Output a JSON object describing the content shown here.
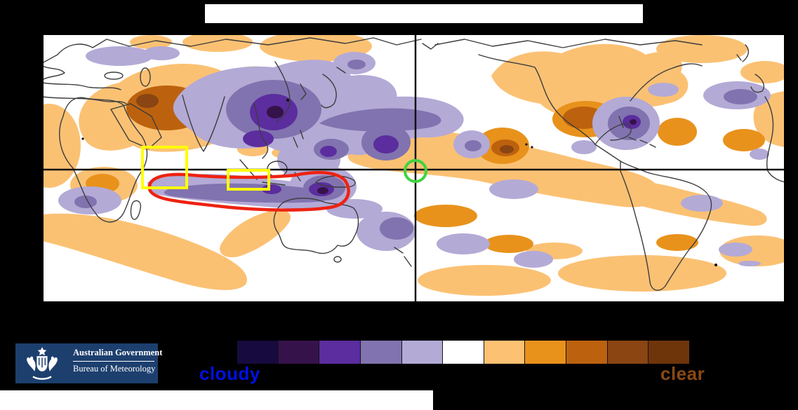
{
  "title_box": {
    "text": ""
  },
  "map": {
    "colors": {
      "background": "#ffffff",
      "coastline": "#3d3d3d",
      "grid_line": "#111111",
      "cloudy_light": "#b3aad6",
      "cloudy_mid": "#8173af",
      "cloudy_dark": "#5b2d9e",
      "cloudy_darkest": "#36124a",
      "clear_light": "#fbc173",
      "clear_mid": "#e8921c",
      "clear_dark": "#bc620f",
      "clear_darkest": "#8a4513",
      "annotation_yellow": "#ffff00",
      "annotation_red": "#ee2211",
      "annotation_green": "#3fd43f"
    }
  },
  "legend": {
    "cloudy_label": "cloudy",
    "clear_label": "clear",
    "cloudy_label_color": "#0010e6",
    "clear_label_color": "#8a4a12",
    "scale_colors": [
      "#160a3e",
      "#36124a",
      "#5b2d9e",
      "#8173af",
      "#b3aad6",
      "#ffffff",
      "#fcc173",
      "#e8921c",
      "#bc620f",
      "#8a4513",
      "#6e350b"
    ]
  },
  "logo": {
    "government": "Australian Government",
    "agency": "Bureau of Meteorology",
    "background": "#1c3f6e"
  }
}
